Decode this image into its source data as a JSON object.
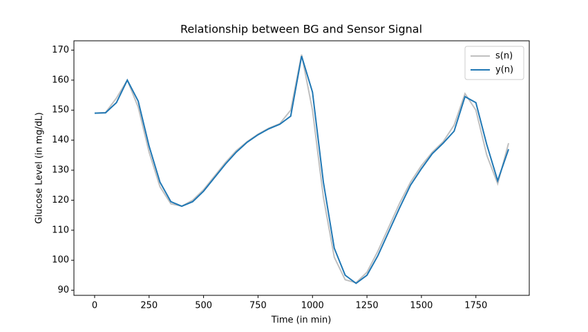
{
  "chart_data": {
    "type": "line",
    "title": "Relationship between BG and Sensor Signal",
    "xlabel": "Time (in min)",
    "ylabel": "Glucose Level (in mg/dL)",
    "x": [
      0,
      50,
      100,
      150,
      200,
      250,
      300,
      350,
      400,
      450,
      500,
      550,
      600,
      650,
      700,
      750,
      800,
      850,
      900,
      950,
      1000,
      1050,
      1100,
      1150,
      1200,
      1250,
      1300,
      1350,
      1400,
      1450,
      1500,
      1550,
      1600,
      1650,
      1700,
      1750,
      1800,
      1850,
      1900
    ],
    "series": [
      {
        "name": "s(n)",
        "color": "#bfbfbf",
        "values": [
          149,
          149.2,
          154,
          160,
          151,
          136,
          124.5,
          118.8,
          118,
          120,
          123.5,
          128,
          132.5,
          136.5,
          139.5,
          142,
          144,
          145.5,
          150,
          168.5,
          150,
          121,
          101,
          93.5,
          92.5,
          96,
          103,
          111,
          119,
          126,
          131.5,
          136,
          139.5,
          145,
          155.5,
          150,
          135,
          125.5,
          139
        ]
      },
      {
        "name": "y(n)",
        "color": "#1f77b4",
        "values": [
          149,
          149.1,
          152.5,
          160,
          153,
          138,
          126,
          119.5,
          118,
          119.5,
          123,
          127.5,
          132,
          136,
          139.3,
          141.8,
          143.8,
          145.3,
          148,
          168,
          156,
          126,
          104,
          95,
          92.3,
          95,
          101.5,
          109.5,
          117.5,
          125,
          130.5,
          135.5,
          139,
          143,
          154.5,
          152.5,
          138.5,
          126.5,
          137
        ]
      }
    ],
    "xlim": [
      -95,
      1995
    ],
    "ylim": [
      88.3,
      173.1
    ],
    "xticks": [
      0,
      250,
      500,
      750,
      1000,
      1250,
      1500,
      1750
    ],
    "yticks": [
      90,
      100,
      110,
      120,
      130,
      140,
      150,
      160,
      170
    ],
    "legend": "upper right"
  }
}
